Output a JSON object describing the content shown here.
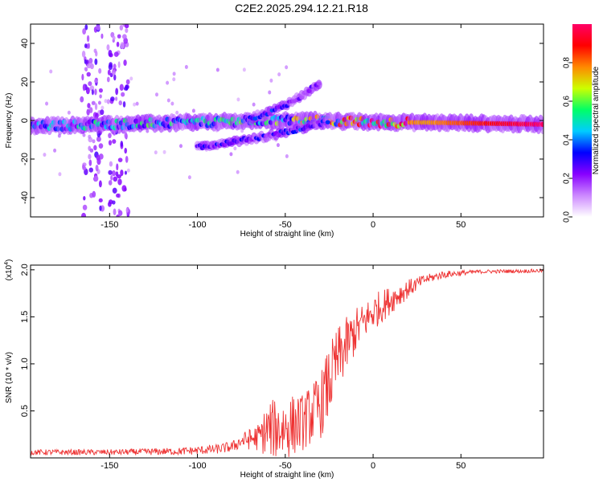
{
  "title": "C2E2.2025.294.12.21.R18",
  "chart_data": [
    {
      "type": "heatmap",
      "name": "spectrogram",
      "xlabel": "Height of straight line (km)",
      "ylabel": "Frequency (Hz)",
      "xlim": [
        -195,
        97
      ],
      "ylim": [
        -50,
        50
      ],
      "xticks": [
        -150,
        -100,
        -50,
        0,
        50
      ],
      "yticks": [
        -40,
        -20,
        0,
        20,
        40
      ],
      "colorbar": {
        "label": "Normalized spectral amplitude",
        "range": [
          0,
          1
        ],
        "ticks": [
          "0.0",
          "0.2",
          "0.4",
          "0.6",
          "0.8"
        ],
        "colors": [
          "#ffffff",
          "#cc88ff",
          "#8800ff",
          "#0000ff",
          "#00ccff",
          "#00ff66",
          "#ccff00",
          "#ff8800",
          "#ff0000",
          "#ff0066"
        ]
      },
      "tracks": [
        {
          "name": "main-band",
          "x": [
            -195,
            -150,
            -100,
            -60,
            -30,
            0,
            30,
            97
          ],
          "freq": [
            -3,
            -2,
            -1,
            0,
            0,
            -1,
            -1,
            -2
          ],
          "amp": [
            0.35,
            0.45,
            0.45,
            0.5,
            0.6,
            0.85,
            0.75,
            1.0
          ]
        },
        {
          "name": "rising-branch",
          "x": [
            -70,
            -60,
            -50,
            -40,
            -30
          ],
          "freq": [
            1,
            4,
            8,
            13,
            20
          ],
          "amp": [
            0.3,
            0.3,
            0.3,
            0.25,
            0.2
          ]
        },
        {
          "name": "lower-branch",
          "x": [
            -100,
            -80,
            -60,
            -40,
            -25
          ],
          "freq": [
            -14,
            -11,
            -8,
            -4,
            0
          ],
          "amp": [
            0.25,
            0.25,
            0.25,
            0.3,
            0.3
          ]
        }
      ],
      "vertical_scatter": [
        {
          "x": -160,
          "freq_range": [
            -50,
            50
          ],
          "amp": 0.2
        },
        {
          "x": -145,
          "freq_range": [
            -50,
            50
          ],
          "amp": 0.2
        }
      ]
    },
    {
      "type": "line",
      "name": "snr",
      "xlabel": "Height of straight line (km)",
      "ylabel": "SNR (10 * v/v)",
      "ylabel_scale": "(x10",
      "ylabel_scale_exp": "4",
      "xlim": [
        -195,
        97
      ],
      "ylim": [
        0,
        2.05
      ],
      "xticks": [
        -150,
        -100,
        -50,
        0,
        50
      ],
      "yticks": [
        0.5,
        1.0,
        1.5,
        2.0
      ],
      "series": [
        {
          "name": "SNR",
          "color": "#ee3333",
          "x": [
            -195,
            -150,
            -110,
            -90,
            -80,
            -75,
            -65,
            -60,
            -50,
            -40,
            -30,
            -25,
            -20,
            -15,
            -10,
            -5,
            0,
            10,
            20,
            30,
            40,
            60,
            97
          ],
          "y": [
            0.06,
            0.06,
            0.07,
            0.09,
            0.12,
            0.18,
            0.22,
            0.3,
            0.32,
            0.38,
            0.55,
            0.8,
            1.05,
            1.2,
            1.35,
            1.45,
            1.55,
            1.68,
            1.8,
            1.9,
            1.95,
            1.98,
            1.99
          ],
          "noise_amplitude": [
            0.03,
            0.03,
            0.04,
            0.05,
            0.06,
            0.08,
            0.15,
            0.3,
            0.35,
            0.3,
            0.35,
            0.4,
            0.35,
            0.3,
            0.25,
            0.2,
            0.2,
            0.15,
            0.1,
            0.05,
            0.04,
            0.02,
            0.02
          ]
        }
      ]
    }
  ]
}
